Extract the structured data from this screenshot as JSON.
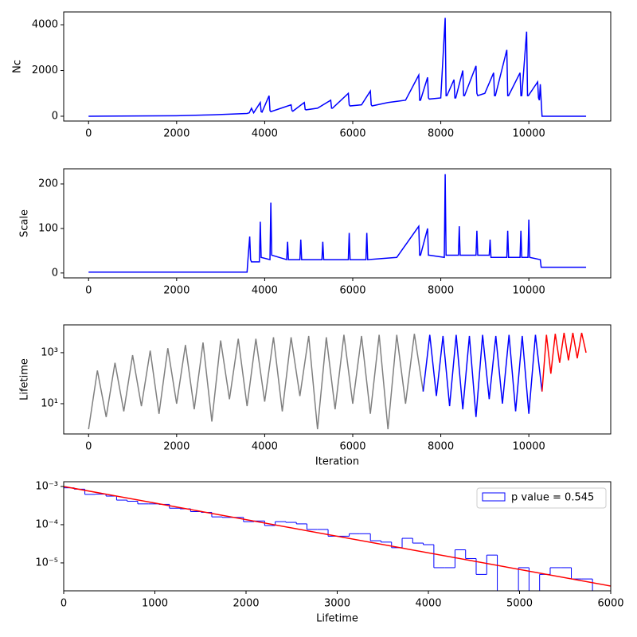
{
  "chart_data": [
    {
      "type": "line",
      "ylabel": "Nc",
      "xlim": [
        -565,
        11860
      ],
      "xticks": [
        0,
        2000,
        4000,
        6000,
        8000,
        10000
      ],
      "ylim": [
        -210,
        4560
      ],
      "yticks": [
        0,
        2000,
        4000
      ],
      "series": [
        {
          "color": "#0000ff",
          "x": [
            0,
            2000,
            2800,
            3600,
            3650,
            3700,
            3750,
            3900,
            3920,
            3940,
            4100,
            4120,
            4140,
            4600,
            4620,
            4640,
            4900,
            4920,
            4940,
            5200,
            5500,
            5520,
            5540,
            5900,
            5920,
            5940,
            6200,
            6400,
            6420,
            6440,
            6800,
            7200,
            7500,
            7520,
            7540,
            7700,
            7720,
            7740,
            8000,
            8100,
            8120,
            8140,
            8300,
            8320,
            8340,
            8500,
            8520,
            8540,
            8800,
            8820,
            8840,
            9000,
            9200,
            9220,
            9240,
            9500,
            9520,
            9540,
            9800,
            9820,
            9840,
            9950,
            9970,
            9990,
            10200,
            10220,
            10240,
            10260,
            10300,
            11300
          ],
          "values": [
            0,
            20,
            60,
            120,
            150,
            350,
            150,
            600,
            200,
            180,
            900,
            250,
            200,
            500,
            250,
            220,
            600,
            300,
            280,
            350,
            700,
            350,
            350,
            1000,
            500,
            450,
            500,
            1100,
            500,
            450,
            600,
            700,
            1800,
            700,
            700,
            1700,
            800,
            750,
            800,
            4300,
            900,
            900,
            1600,
            800,
            800,
            2000,
            900,
            900,
            2200,
            1000,
            900,
            1000,
            1900,
            900,
            900,
            2900,
            900,
            900,
            1900,
            900,
            900,
            3700,
            900,
            900,
            1500,
            800,
            700,
            1400,
            0,
            0
          ]
        }
      ]
    },
    {
      "type": "line",
      "ylabel": "Scale",
      "xlim": [
        -565,
        11860
      ],
      "xticks": [
        0,
        2000,
        4000,
        6000,
        8000,
        10000
      ],
      "ylim": [
        -11,
        234
      ],
      "yticks": [
        0,
        100,
        200
      ],
      "series": [
        {
          "color": "#0000ff",
          "x": [
            0,
            3600,
            3620,
            3660,
            3680,
            3700,
            3880,
            3900,
            3920,
            4120,
            4140,
            4160,
            4500,
            4520,
            4540,
            4800,
            4820,
            4840,
            5300,
            5320,
            5340,
            5900,
            5920,
            5940,
            6300,
            6320,
            6340,
            7000,
            7500,
            7520,
            7540,
            7700,
            7720,
            7740,
            8080,
            8100,
            8120,
            8400,
            8420,
            8440,
            8800,
            8820,
            8840,
            9100,
            9120,
            9140,
            9500,
            9520,
            9540,
            9800,
            9820,
            9840,
            9980,
            10000,
            10020,
            10260,
            10280,
            11300
          ],
          "values": [
            2,
            2,
            30,
            82,
            30,
            25,
            25,
            115,
            35,
            30,
            158,
            40,
            30,
            70,
            30,
            30,
            75,
            30,
            30,
            70,
            30,
            30,
            90,
            30,
            30,
            90,
            30,
            35,
            105,
            40,
            40,
            100,
            40,
            40,
            35,
            222,
            40,
            40,
            105,
            40,
            40,
            95,
            40,
            40,
            75,
            35,
            35,
            95,
            35,
            35,
            95,
            35,
            35,
            120,
            35,
            30,
            13,
            13
          ]
        }
      ]
    },
    {
      "type": "line",
      "ylabel": "Lifetime",
      "xlabel": "Iteration",
      "yscale": "log",
      "xlim": [
        -565,
        11860
      ],
      "xticks": [
        0,
        2000,
        4000,
        6000,
        8000,
        10000
      ],
      "ylim": [
        0.65,
        12300
      ],
      "yticks": [
        {
          "value": 10,
          "label": "10¹"
        },
        {
          "value": 1000,
          "label": "10³"
        }
      ],
      "series": [
        {
          "color": "#808080",
          "x": [
            0,
            200,
            400,
            600,
            800,
            1000,
            1200,
            1400,
            1600,
            1800,
            2000,
            2200,
            2400,
            2600,
            2800,
            3000,
            3200,
            3400,
            3600,
            3800,
            4000,
            4200,
            4400,
            4600,
            4800,
            5000,
            5200,
            5400,
            5600,
            5800,
            6000,
            6200,
            6400,
            6600,
            6800,
            7000,
            7200,
            7400,
            7600
          ],
          "values": [
            1,
            200,
            3,
            400,
            5,
            800,
            8,
            1200,
            4,
            1500,
            10,
            2000,
            6,
            2500,
            2,
            3000,
            15,
            3500,
            8,
            3500,
            12,
            4000,
            5,
            4000,
            20,
            4500,
            1,
            4000,
            6,
            5000,
            10,
            4500,
            4,
            5000,
            1,
            5000,
            10,
            5500,
            30
          ]
        },
        {
          "color": "#0000ff",
          "x": [
            7600,
            7750,
            7900,
            8050,
            8200,
            8350,
            8500,
            8650,
            8800,
            8950,
            9100,
            9250,
            9400,
            9550,
            9700,
            9850,
            10000,
            10150,
            10300
          ],
          "values": [
            30,
            5000,
            20,
            4500,
            8,
            5000,
            6,
            4500,
            3,
            5000,
            15,
            4500,
            10,
            5000,
            5,
            4500,
            4,
            5000,
            30
          ]
        },
        {
          "color": "#ff0000",
          "x": [
            10300,
            10400,
            10500,
            10600,
            10700,
            10800,
            10900,
            11000,
            11100,
            11200,
            11300
          ],
          "values": [
            30,
            5000,
            150,
            5500,
            400,
            6000,
            500,
            6000,
            600,
            6000,
            1000
          ]
        }
      ]
    },
    {
      "type": "histogram",
      "xlabel": "Lifetime",
      "yscale": "log",
      "legend": "upper right",
      "xlim": [
        0,
        6000
      ],
      "xticks": [
        0,
        1000,
        2000,
        3000,
        4000,
        5000,
        6000
      ],
      "ylim": [
        1.86e-06,
        0.00133
      ],
      "yticks": [
        {
          "value": 0.001,
          "label": "10⁻³"
        },
        {
          "value": 0.0001,
          "label": "10⁻⁴"
        },
        {
          "value": 1e-05,
          "label": "10⁻⁵"
        }
      ],
      "name": "p value = 0.545",
      "color": "#0000ff",
      "bins": [
        0,
        116,
        232,
        348,
        464,
        580,
        696,
        812,
        928,
        1044,
        1160,
        1276,
        1392,
        1508,
        1624,
        1740,
        1856,
        1972,
        2088,
        2204,
        2320,
        2436,
        2552,
        2668,
        2784,
        2900,
        3016,
        3132,
        3248,
        3364,
        3480,
        3596,
        3712,
        3828,
        3944,
        4060,
        4176,
        4292,
        4408,
        4524,
        4640,
        4756,
        4872,
        4988,
        5104,
        5220,
        5336,
        5452,
        5568,
        5684,
        5800
      ],
      "values": [
        0.00092,
        0.00085,
        0.00062,
        0.00063,
        0.00056,
        0.00044,
        0.00041,
        0.00035,
        0.00035,
        0.00034,
        0.00027,
        0.00026,
        0.00022,
        0.00021,
        0.00016,
        0.000155,
        0.000155,
        0.00012,
        0.000125,
        9.5e-05,
        0.00012,
        0.000115,
        0.000105,
        7.5e-05,
        7.5e-05,
        5e-05,
        5e-05,
        5.8e-05,
        5.8e-05,
        3.8e-05,
        3.5e-05,
        2.5e-05,
        4.4e-05,
        3.3e-05,
        3e-05,
        7.5e-06,
        7.5e-06,
        2.2e-05,
        1.3e-05,
        5e-06,
        1.6e-05,
        0,
        0,
        7.5e-06,
        0,
        5e-06,
        7.5e-06,
        7.5e-06,
        3.8e-06,
        3.8e-06
      ],
      "fit": {
        "color": "#ff0000",
        "x": [
          0,
          6000
        ],
        "values": [
          0.001,
          2.48e-06
        ]
      }
    }
  ]
}
